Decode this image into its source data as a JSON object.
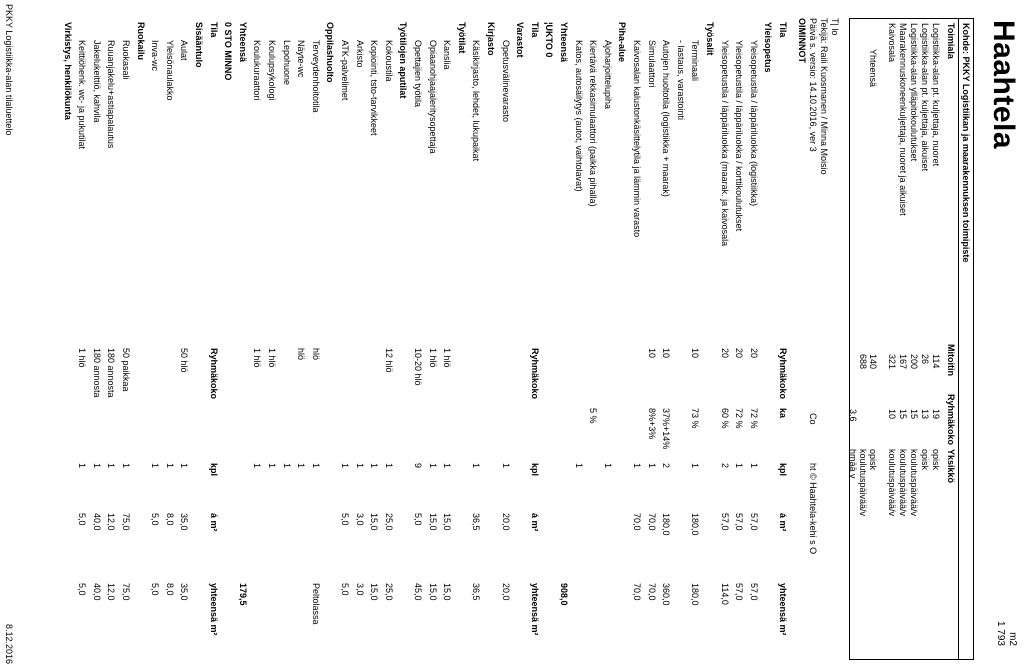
{
  "title": "Haahtela",
  "m2_label": "m2",
  "m2_total": "1 793",
  "summary_header": "Kohde: PKKY Logistiikan ja maarakennuksen toimipiste",
  "summary_cols": [
    "Toimiala",
    "Mitoitin",
    "Ryhmäkoko",
    "Yksikkö"
  ],
  "summary_rows": [
    [
      "Logistiikka-alan pt. kuljettaja, nuoret",
      "114",
      "19",
      "opisk"
    ],
    [
      "Logistiikka-alan pt. kuljettaja, aikuiset",
      "26",
      "13",
      "opisk"
    ],
    [
      "Logistiikka-alan ylläpitokoulutukset",
      "200",
      "15",
      "koulutuspäivää/v"
    ],
    [
      "Maarakennuskoneenkuljettaja, nuoret ja aikuiset",
      "167",
      "15",
      "koulutuspäivää/v"
    ],
    [
      "Kaivosala",
      "321",
      "10",
      "koulutuspäivää/v"
    ]
  ],
  "summary_total": [
    "Yhteensä",
    "140",
    "",
    "opisk"
  ],
  "summary_total2": [
    "",
    "688",
    "",
    "koulutuspäivää/v"
  ],
  "summary_total3": [
    "",
    "",
    "3,6",
    "hmää   v"
  ],
  "meta": [
    "T|     lo",
    "Tekijä: Raili Kuosmanen / Minna Moisio",
    "Päivä  s. versio: 14.10.2016, ver 3",
    "OIMINNOT"
  ],
  "meta_right": "Co",
  "meta_right2": "ht © Haahtela-kehi   s O",
  "table": [
    {
      "t": "h",
      "a": "Tila",
      "b": "Ryhmäkoko",
      "c": "ka",
      "d": "kpl",
      "e": "á m²",
      "f": "yhteensä m²"
    },
    {
      "t": "s",
      "a": "Yleisopetus"
    },
    {
      "t": "i",
      "a": "Yleisopetustila / läppäriluokka (logistiikka)",
      "b": "20",
      "c": "72 %",
      "d": "1",
      "e": "57,0",
      "f": "57,0"
    },
    {
      "t": "i",
      "a": "Yleisopetustila / läppäriluokka / korttikoulutukset",
      "b": "20",
      "c": "72 %",
      "d": "1",
      "e": "57,0",
      "f": "57,0"
    },
    {
      "t": "i",
      "a": "Yleisopetustila / läppäriluokka (maarak. ja kaivosala",
      "b": "20",
      "c": "60 %",
      "d": "2",
      "e": "57,0",
      "f": "114,0"
    },
    {
      "t": "s",
      "a": "Työsalit"
    },
    {
      "t": "i",
      "a": "Terminaali",
      "b": "10",
      "c": "73 %",
      "d": "1",
      "e": "180,0",
      "f": "180,0"
    },
    {
      "t": "i",
      "a": " - lastaus, varastointi",
      "b": "",
      "c": "",
      "d": "",
      "e": "",
      "f": ""
    },
    {
      "t": "i",
      "a": "Autojen huoltotila (logistiikka + maarak)",
      "b": "10",
      "c": "37%+14%",
      "d": "2",
      "e": "180,0",
      "f": "360,0"
    },
    {
      "t": "i",
      "a": "Simulaattori",
      "b": "10",
      "c": "8%+3%",
      "d": "1",
      "e": "70,0",
      "f": "70,0"
    },
    {
      "t": "i",
      "a": "Kaivosalan kalustonkäsittelytila ja lämmin varasto",
      "b": "",
      "c": "",
      "d": "1",
      "e": "70,0",
      "f": "70,0"
    },
    {
      "t": "s",
      "a": "Piha-alue"
    },
    {
      "t": "i",
      "a": "Ajoharjoittelupiha",
      "b": "",
      "c": "",
      "d": "1",
      "e": "",
      "f": ""
    },
    {
      "t": "i",
      "a": "Kiertävä rekkasimulaattori (paikka pihalla)",
      "b": "",
      "c": "5 %",
      "d": "",
      "e": "",
      "f": ""
    },
    {
      "t": "i",
      "a": "Katos, autosäilytys (autot, vaihtolavat)",
      "b": "",
      "c": "",
      "d": "1",
      "e": "",
      "f": ""
    },
    {
      "t": "s",
      "a": "Yhteensä",
      "f": "908,0"
    },
    {
      "t": "s",
      "a": "¦UKTO      0",
      "b": "",
      "c": "",
      "d": "",
      "e": "",
      "f": ""
    },
    {
      "t": "h",
      "a": "Tila",
      "b": "Ryhmäkoko",
      "c": "",
      "d": "kpl",
      "e": "á m²",
      "f": "yhteensä m²"
    },
    {
      "t": "s",
      "a": "Varastot"
    },
    {
      "t": "i",
      "a": "Opetusvälinevarasto",
      "b": "",
      "c": "",
      "d": "1",
      "e": "20,0",
      "f": "20,0"
    },
    {
      "t": "s",
      "a": "Kirjasto"
    },
    {
      "t": "i",
      "a": "Käsikirjasto, lehdet, lukupaikat",
      "b": "",
      "c": "",
      "d": "1",
      "e": "36,5",
      "f": "36,5"
    },
    {
      "t": "s",
      "a": "Työtilat"
    },
    {
      "t": "i",
      "a": "Kanslia",
      "b": "1 hlö",
      "c": "",
      "d": "1",
      "e": "15,0",
      "f": "15,0"
    },
    {
      "t": "i",
      "a": "Opiaanohjaajaleritysopettaja",
      "b": "1 hlö",
      "c": "",
      "d": "1",
      "e": "15,0",
      "f": "15,0"
    },
    {
      "t": "i",
      "a": "Opettajien työtila",
      "b": "10-20 hlö",
      "c": "",
      "d": "9",
      "e": "5,0",
      "f": "45,0"
    },
    {
      "t": "s",
      "a": "Työtilojen aputilat"
    },
    {
      "t": "i",
      "a": "Kokoustila",
      "b": "12 hlö",
      "c": "",
      "d": "1",
      "e": "25,0",
      "f": "25,0"
    },
    {
      "t": "i",
      "a": "Kopiointi, tsto-tarvikkeet",
      "b": "",
      "c": "",
      "d": "1",
      "e": "15,0",
      "f": "15,0"
    },
    {
      "t": "i",
      "a": "Arkisto",
      "b": "",
      "c": "",
      "d": "1",
      "e": "3,0",
      "f": "3,0"
    },
    {
      "t": "i",
      "a": "ATK-palvelimet",
      "b": "",
      "c": "",
      "d": "1",
      "e": "5,0",
      "f": "5,0"
    },
    {
      "t": "s",
      "a": "Oppilashuolto"
    },
    {
      "t": "i",
      "a": "Terveydenhoitotila",
      "b": "hlö",
      "c": "",
      "d": "1",
      "e": "",
      "f": "Peltolassa"
    },
    {
      "t": "i",
      "a": "Näyte-wc",
      "b": "hlö",
      "c": "",
      "d": "1",
      "e": "",
      "f": ""
    },
    {
      "t": "i",
      "a": "Lepohuone",
      "b": "",
      "c": "",
      "d": "1",
      "e": "",
      "f": ""
    },
    {
      "t": "i",
      "a": "Koulupsykologi",
      "b": "1 hlö",
      "c": "",
      "d": "1",
      "e": "",
      "f": ""
    },
    {
      "t": "i",
      "a": "Koulukuraattori",
      "b": "1 hlö",
      "c": "",
      "d": "1",
      "e": "",
      "f": ""
    },
    {
      "t": "s",
      "a": "Yhteensä",
      "f": "179,5"
    },
    {
      "t": "s",
      "a": "0    STO MINNO"
    },
    {
      "t": "h",
      "a": "Tila",
      "b": "Ryhmäkoko",
      "c": "",
      "d": "kpl",
      "e": "á m²",
      "f": "yhteensä m²"
    },
    {
      "t": "s",
      "a": "Sisääntulo"
    },
    {
      "t": "i",
      "a": "Aulat",
      "b": "50 hlö",
      "c": "",
      "d": "1",
      "e": "35,0",
      "f": "35,0"
    },
    {
      "t": "i",
      "a": "Yleisönaulakko",
      "b": "",
      "c": "",
      "d": "1",
      "e": "8,0",
      "f": "8,0"
    },
    {
      "t": "i",
      "a": "Inva-wc",
      "b": "",
      "c": "",
      "d": "1",
      "e": "5,0",
      "f": "5,0"
    },
    {
      "t": "s",
      "a": "Ruokailu"
    },
    {
      "t": "i",
      "a": "Ruokasali",
      "b": "50 paikkaa",
      "c": "",
      "d": "1",
      "e": "75,0",
      "f": "75,0"
    },
    {
      "t": "i",
      "a": "Ruuanjakelu+astiapalautus",
      "b": "180 annosta",
      "c": "",
      "d": "1",
      "e": "12,0",
      "f": "12,0"
    },
    {
      "t": "i",
      "a": "Jakelukeittiö, kahvila",
      "b": "180 annosta",
      "c": "",
      "d": "1",
      "e": "40,0",
      "f": "40,0"
    },
    {
      "t": "i",
      "a": "Keittiöhenk. wc- ja pukutilat",
      "b": "1 hlö",
      "c": "",
      "d": "1",
      "e": "5,0",
      "f": "5,0"
    },
    {
      "t": "s",
      "a": "Virkistys, henkilökunta"
    }
  ],
  "footer_left": "PKKY Logistiikka-alan tilaluettelo",
  "footer_right": "8.12.2016"
}
